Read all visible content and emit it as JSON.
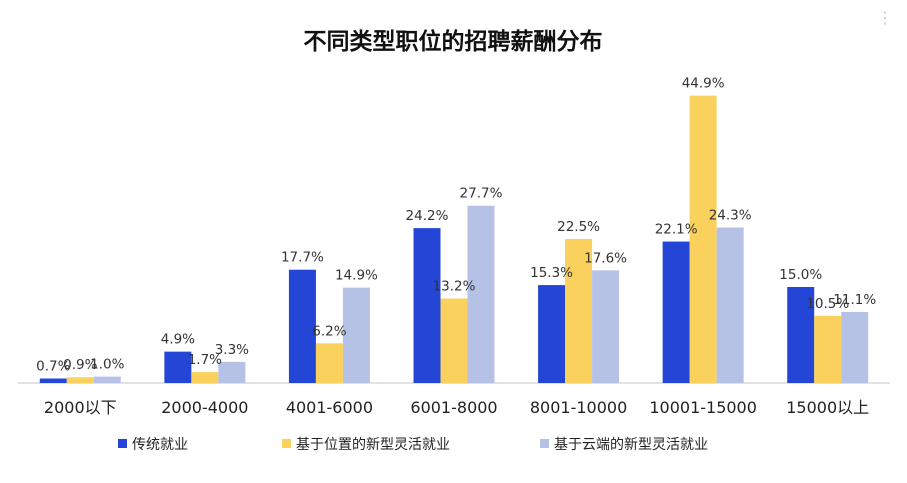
{
  "chart_data": {
    "type": "bar",
    "title": "不同类型职位的招聘薪酬分布",
    "categories": [
      "2000以下",
      "2000-4000",
      "4001-6000",
      "6001-8000",
      "8001-10000",
      "10001-15000",
      "15000以上"
    ],
    "series": [
      {
        "name": "传统就业",
        "color": "#2346d6",
        "values": [
          0.7,
          4.9,
          17.7,
          24.2,
          15.3,
          22.1,
          15.0
        ],
        "labels": [
          "0.7%",
          "4.9%",
          "17.7%",
          "24.2%",
          "15.3%",
          "22.1%",
          "15.0%"
        ]
      },
      {
        "name": "基于位置的新型灵活就业",
        "color": "#f9d15c",
        "values": [
          0.9,
          1.7,
          6.2,
          13.2,
          22.5,
          44.9,
          10.5
        ],
        "labels": [
          "0.9%",
          "1.7%",
          "6.2%",
          "13.2%",
          "22.5%",
          "44.9%",
          "10.5%"
        ]
      },
      {
        "name": "基于云端的新型灵活就业",
        "color": "#b5c2e6",
        "values": [
          1.0,
          3.3,
          14.9,
          27.7,
          17.6,
          24.3,
          11.1
        ],
        "labels": [
          "1.0%",
          "3.3%",
          "14.9%",
          "27.7%",
          "17.6%",
          "24.3%",
          "11.1%"
        ]
      }
    ],
    "ylim": [
      0,
      45
    ],
    "xlabel": "",
    "ylabel": "",
    "grid": false,
    "legend_position": "bottom",
    "axis_color": "#d9d9d9"
  },
  "decor": {
    "corner_menu_icon": "more-dots-icon",
    "corner_menu_glyph": "⋮"
  }
}
